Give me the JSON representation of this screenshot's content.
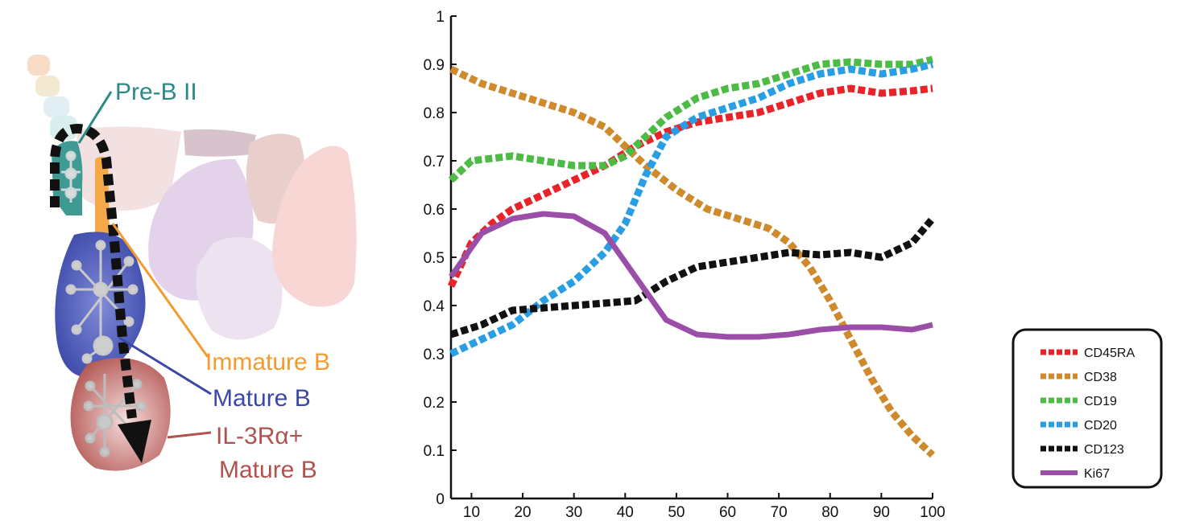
{
  "diagram": {
    "labels": {
      "pre_b_ii": "Pre-B II",
      "immature_b": "Immature B",
      "mature_b": "Mature B",
      "il3_line1": "IL-3Rα+",
      "il3_line2": "Mature B"
    },
    "colors": {
      "pre_b_ii": "#2a8a86",
      "immature_b": "#f59a2e",
      "mature_b": "#3b48a8",
      "il3": "#b0524e"
    }
  },
  "chart_data": {
    "type": "line",
    "title": "",
    "xlabel": "",
    "ylabel": "",
    "xlim": [
      6,
      100
    ],
    "ylim": [
      0,
      1
    ],
    "x_ticks": [
      10,
      20,
      30,
      40,
      50,
      60,
      70,
      80,
      90,
      100
    ],
    "y_ticks": [
      0,
      0.1,
      0.2,
      0.3,
      0.4,
      0.5,
      0.6,
      0.7,
      0.8,
      0.9,
      1
    ],
    "x_tick_labels": [
      "10",
      "20",
      "30",
      "40",
      "50",
      "60",
      "70",
      "80",
      "90",
      "100"
    ],
    "y_tick_labels": [
      "0",
      "0.1",
      "0.2",
      "0.3",
      "0.4",
      "0.5",
      "0.6",
      "0.7",
      "0.8",
      "0.9",
      "1"
    ],
    "grid": false,
    "legend_position": "right",
    "series": [
      {
        "name": "CD45RA",
        "color": "#e8232a",
        "style": "dashed",
        "x": [
          6,
          10,
          14,
          18,
          24,
          30,
          36,
          42,
          48,
          54,
          60,
          66,
          72,
          78,
          84,
          90,
          96,
          100
        ],
        "y": [
          0.44,
          0.53,
          0.57,
          0.6,
          0.63,
          0.66,
          0.69,
          0.73,
          0.76,
          0.78,
          0.79,
          0.8,
          0.82,
          0.84,
          0.85,
          0.84,
          0.845,
          0.85
        ]
      },
      {
        "name": "CD38",
        "color": "#d08a2e",
        "style": "dashed",
        "x": [
          6,
          12,
          18,
          24,
          30,
          36,
          40,
          44,
          50,
          56,
          62,
          68,
          72,
          76,
          80,
          84,
          88,
          92,
          96,
          100
        ],
        "y": [
          0.89,
          0.86,
          0.84,
          0.82,
          0.8,
          0.77,
          0.73,
          0.69,
          0.64,
          0.6,
          0.58,
          0.56,
          0.53,
          0.48,
          0.41,
          0.33,
          0.25,
          0.18,
          0.13,
          0.09
        ]
      },
      {
        "name": "CD19",
        "color": "#4dbb46",
        "style": "dashed",
        "x": [
          6,
          10,
          18,
          24,
          30,
          36,
          40,
          44,
          48,
          54,
          60,
          66,
          72,
          78,
          84,
          90,
          96,
          100
        ],
        "y": [
          0.66,
          0.7,
          0.71,
          0.7,
          0.69,
          0.69,
          0.71,
          0.75,
          0.79,
          0.83,
          0.85,
          0.86,
          0.88,
          0.9,
          0.905,
          0.9,
          0.9,
          0.91
        ]
      },
      {
        "name": "CD20",
        "color": "#2a9ee3",
        "style": "dashed",
        "x": [
          6,
          12,
          18,
          24,
          30,
          36,
          40,
          44,
          48,
          54,
          60,
          66,
          72,
          78,
          84,
          90,
          96,
          100
        ],
        "y": [
          0.3,
          0.33,
          0.36,
          0.41,
          0.45,
          0.51,
          0.57,
          0.67,
          0.75,
          0.79,
          0.81,
          0.83,
          0.86,
          0.88,
          0.89,
          0.88,
          0.89,
          0.9
        ]
      },
      {
        "name": "CD123",
        "color": "#111111",
        "style": "dashed",
        "x": [
          6,
          12,
          18,
          24,
          30,
          36,
          42,
          48,
          54,
          60,
          66,
          72,
          78,
          84,
          90,
          96,
          100
        ],
        "y": [
          0.34,
          0.36,
          0.39,
          0.395,
          0.4,
          0.405,
          0.41,
          0.45,
          0.48,
          0.49,
          0.5,
          0.51,
          0.505,
          0.51,
          0.5,
          0.53,
          0.58
        ]
      },
      {
        "name": "Ki67",
        "color": "#9b4ea7",
        "style": "solid",
        "x": [
          6,
          12,
          18,
          24,
          30,
          36,
          42,
          48,
          54,
          60,
          66,
          72,
          78,
          84,
          90,
          96,
          100
        ],
        "y": [
          0.46,
          0.55,
          0.58,
          0.59,
          0.585,
          0.55,
          0.46,
          0.37,
          0.34,
          0.335,
          0.335,
          0.34,
          0.35,
          0.355,
          0.355,
          0.35,
          0.36
        ]
      }
    ]
  }
}
